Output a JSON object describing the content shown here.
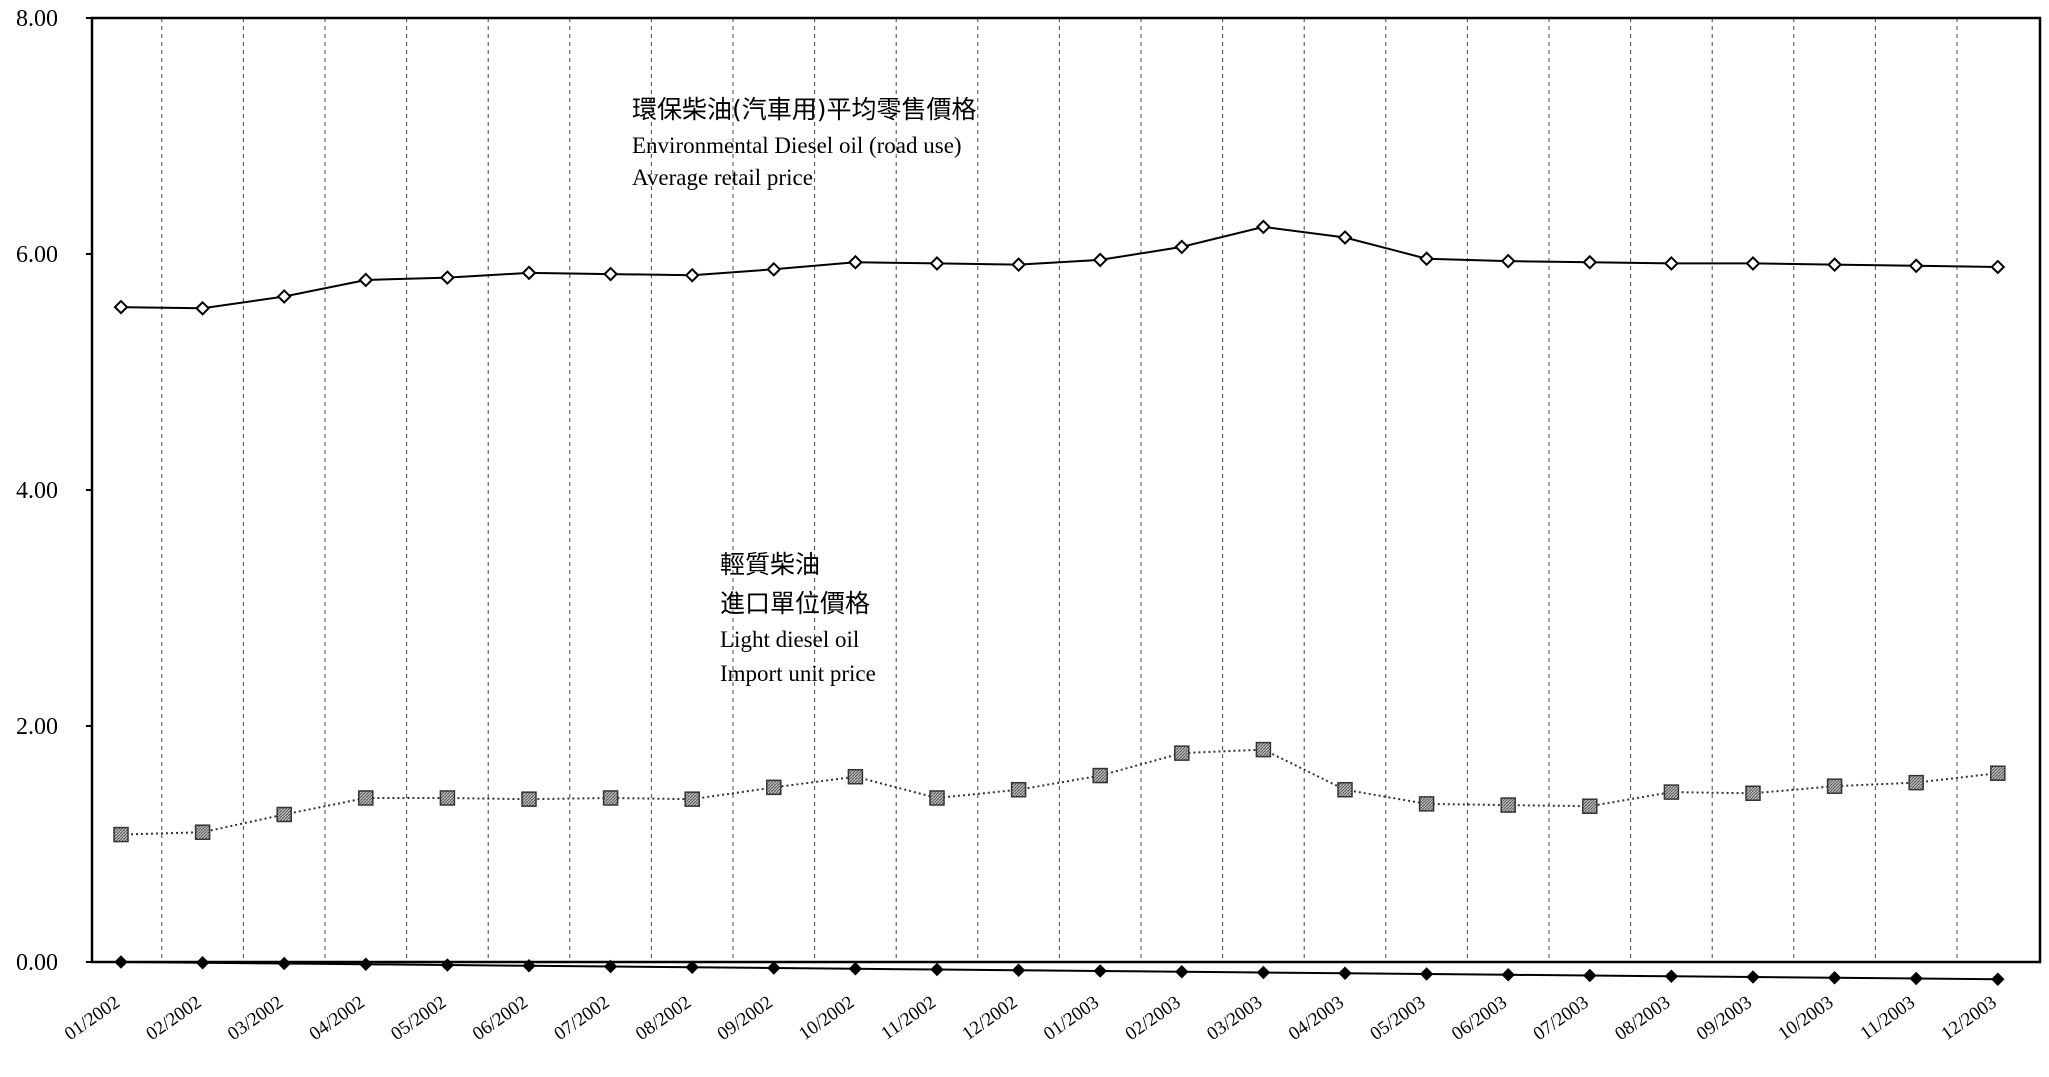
{
  "chart_data": {
    "type": "line",
    "title": "",
    "xlabel": "",
    "ylabel": "",
    "ylim": [
      0,
      8
    ],
    "yticks": [
      "0.00",
      "2.00",
      "4.00",
      "6.00",
      "8.00"
    ],
    "grid": "vertical dashed lines between months",
    "categories": [
      "01/2002",
      "02/2002",
      "03/2002",
      "04/2002",
      "05/2002",
      "06/2002",
      "07/2002",
      "08/2002",
      "09/2002",
      "10/2002",
      "11/2002",
      "12/2002",
      "01/2003",
      "02/2003",
      "03/2003",
      "04/2003",
      "05/2003",
      "06/2003",
      "07/2003",
      "08/2003",
      "09/2003",
      "10/2003",
      "11/2003",
      "12/2003"
    ],
    "series": [
      {
        "name": "環保柴油(汽車用)平均零售價格 Environmental Diesel oil (road use) Average retail price",
        "marker": "open-diamond",
        "line": "solid",
        "values": [
          5.55,
          5.54,
          5.64,
          5.78,
          5.8,
          5.84,
          5.83,
          5.82,
          5.87,
          5.93,
          5.92,
          5.91,
          5.95,
          6.06,
          6.23,
          6.14,
          5.96,
          5.94,
          5.93,
          5.92,
          5.92,
          5.91,
          5.9,
          5.89
        ]
      },
      {
        "name": "輕質柴油 進口單位價格 Light diesel oil Import unit price",
        "marker": "hatched-square",
        "line": "dotted",
        "values": [
          1.08,
          1.1,
          1.25,
          1.39,
          1.39,
          1.38,
          1.39,
          1.38,
          1.48,
          1.57,
          1.39,
          1.46,
          1.58,
          1.77,
          1.8,
          1.46,
          1.34,
          1.33,
          1.32,
          1.44,
          1.43,
          1.49,
          1.52,
          1.6
        ]
      },
      {
        "marker": "filled-diamond",
        "line": "solid",
        "values": [
          0,
          0,
          0,
          0,
          0,
          0,
          0,
          0,
          0,
          0,
          0,
          0,
          0,
          0,
          0,
          0,
          0,
          0,
          0,
          0,
          0,
          0,
          0,
          0
        ]
      }
    ],
    "annotations": [
      {
        "series": 0,
        "lines": [
          "環保柴油(汽車用)平均零售價格",
          "Environmental Diesel oil (road use)",
          "Average retail price"
        ]
      },
      {
        "series": 1,
        "lines": [
          "輕質柴油",
          "進口單位價格",
          "Light diesel oil",
          "Import unit price"
        ]
      }
    ]
  }
}
